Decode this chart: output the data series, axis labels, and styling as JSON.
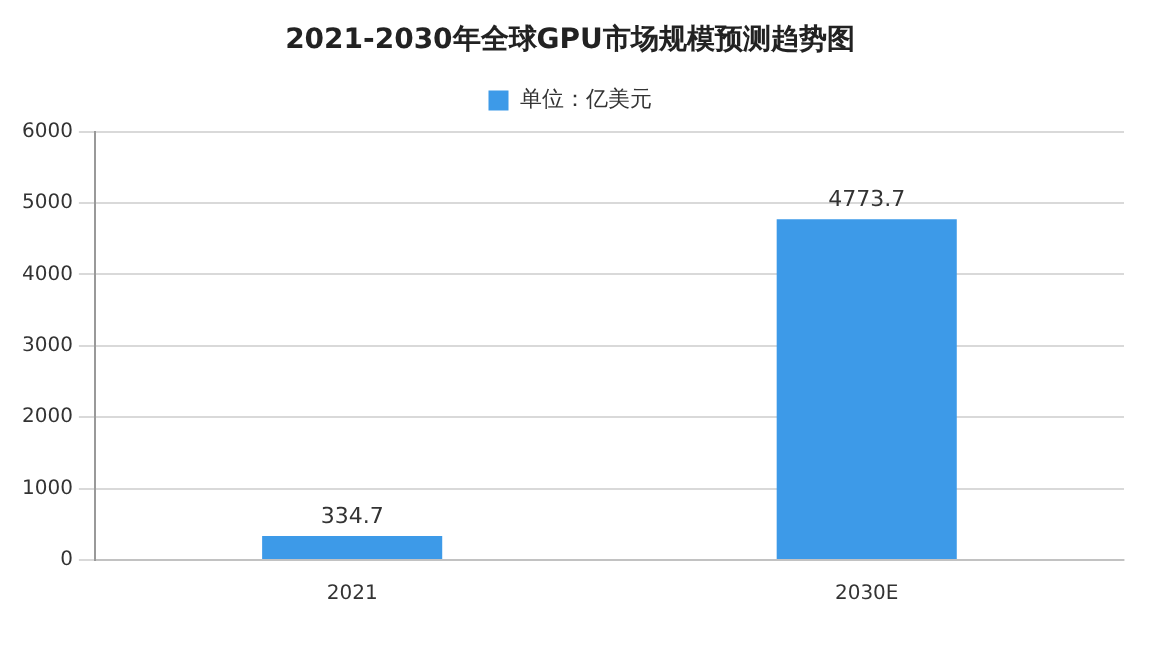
{
  "chart_data": {
    "type": "bar",
    "title": "2021-2030年全球GPU市场规模预测趋势图",
    "categories": [
      "2021",
      "2030E"
    ],
    "series": [
      {
        "name": "单位：亿美元",
        "color": "#3d9ae8",
        "values": [
          334.7,
          4773.7
        ]
      }
    ],
    "ylim": [
      0,
      6000
    ],
    "yticks": [
      0,
      1000,
      2000,
      3000,
      4000,
      5000,
      6000
    ],
    "grid": "y",
    "legend": "top",
    "data_labels": true
  }
}
